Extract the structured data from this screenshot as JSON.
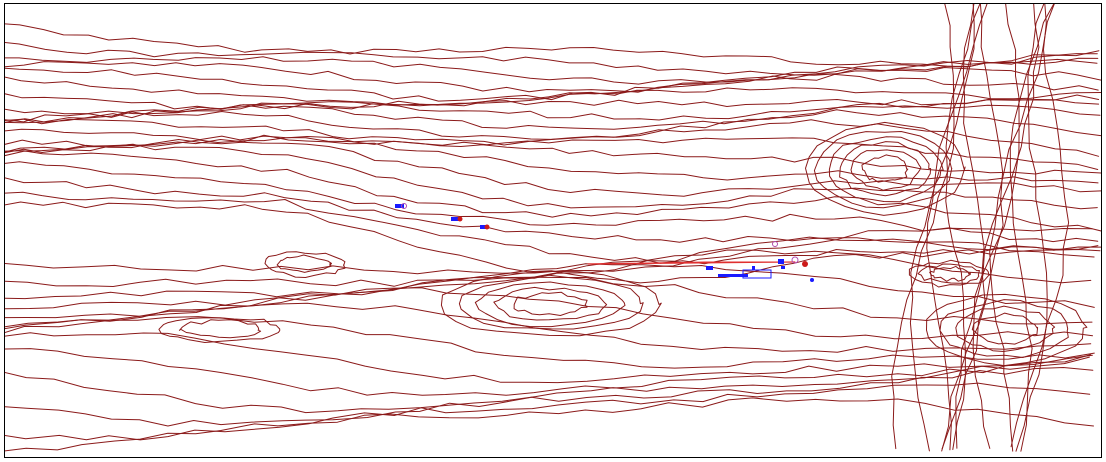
{
  "map": {
    "colors": {
      "background": "#ffffff",
      "frame": "#000000",
      "contour": "#8b1a1a",
      "contour_highlight": "#e03030",
      "feature_blue": "#1a1aff",
      "feature_red": "#cc1a1a",
      "feature_purple": "#b04ab0"
    },
    "layers": [
      "contour-lines",
      "site-features"
    ],
    "features": [
      "structure",
      "structure",
      "structure",
      "building",
      "road",
      "marker"
    ]
  }
}
